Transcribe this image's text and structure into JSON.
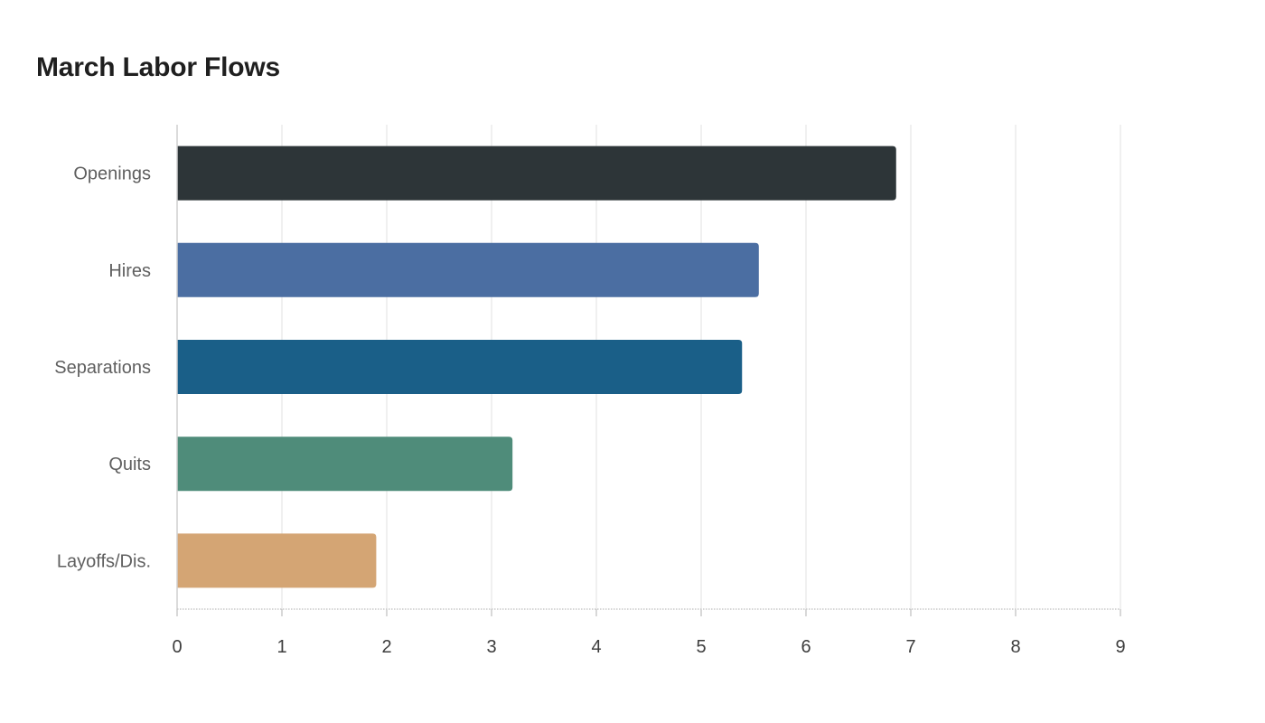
{
  "chart_data": {
    "type": "bar",
    "orientation": "horizontal",
    "title": "March Labor Flows",
    "categories": [
      "Openings",
      "Hires",
      "Separations",
      "Quits",
      "Layoffs/Dis."
    ],
    "values": [
      6.86,
      5.55,
      5.39,
      3.2,
      1.9
    ],
    "colors": [
      "#2d3538",
      "#4b6ea2",
      "#1a5f88",
      "#4f8c7a",
      "#d4a574"
    ],
    "xlim": [
      0,
      9
    ],
    "xticks": [
      "0",
      "1",
      "2",
      "3",
      "4",
      "5",
      "6",
      "7",
      "8",
      "9"
    ],
    "xlabel": "",
    "ylabel": "",
    "grid": "vertical"
  }
}
